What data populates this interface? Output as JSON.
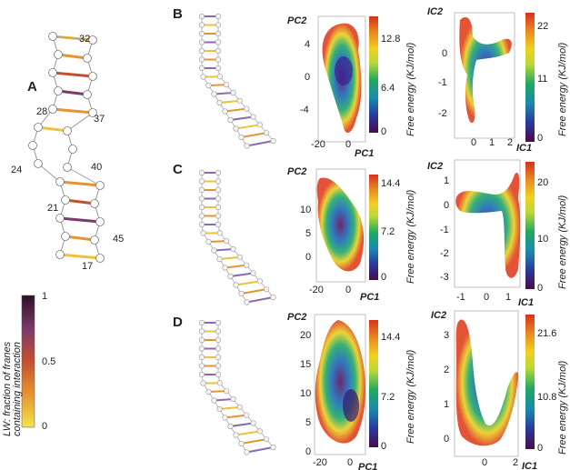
{
  "panels": {
    "A": "A",
    "B": "B",
    "C": "C",
    "D": "D"
  },
  "nums_A": [
    "32",
    "28",
    "37",
    "24",
    "40",
    "21",
    "45",
    "17"
  ],
  "legend": {
    "title_line1": "LW: fraction of franes",
    "title_line2": "containing interaction",
    "ticks": [
      "1",
      "0.5",
      "0"
    ],
    "colors": [
      "#3a0f2e",
      "#6b2d5b",
      "#b0405a",
      "#d4602a",
      "#e59530",
      "#f0c23a",
      "#f5e34a"
    ]
  },
  "rows": [
    {
      "pca": {
        "ylabel": "PC2",
        "xlabel": "PC1",
        "cblabel": "Free energy (KJ/mol)",
        "cbticks": [
          "12.8",
          "6.4",
          "0"
        ],
        "yticks": [
          "4",
          "0",
          "-4"
        ],
        "xticks": [
          "-20",
          "0"
        ]
      },
      "ica": {
        "ylabel": "IC2",
        "xlabel": "IC1",
        "cblabel": "Free energy (KJ/mol)",
        "cbticks": [
          "22",
          "11",
          "0"
        ],
        "yticks": [
          "0",
          "-1",
          "-2"
        ],
        "xticks": [
          "0",
          "1",
          "2"
        ]
      }
    },
    {
      "pca": {
        "ylabel": "PC2",
        "xlabel": "PC1",
        "cblabel": "Free energy (KJ/mol)",
        "cbticks": [
          "14.4",
          "7.2",
          "0"
        ],
        "yticks": [
          "10",
          "5",
          "0"
        ],
        "xticks": [
          "-20",
          "0"
        ]
      },
      "ica": {
        "ylabel": "IC2",
        "xlabel": "IC1",
        "cblabel": "Free energy (KJ/mol)",
        "cbticks": [
          "20",
          "10",
          "0"
        ],
        "yticks": [
          "1",
          "0",
          "-1",
          "-2",
          "-3"
        ],
        "xticks": [
          "-1",
          "0",
          "1"
        ]
      }
    },
    {
      "pca": {
        "ylabel": "PC2",
        "xlabel": "PC1",
        "cblabel": "Free energy (KJ/mol)",
        "cbticks": [
          "14.4",
          "7.2",
          "0"
        ],
        "yticks": [
          "20",
          "15",
          "10",
          "5",
          "0"
        ],
        "xticks": [
          "-20",
          "0"
        ]
      },
      "ica": {
        "ylabel": "IC2",
        "xlabel": "IC1",
        "cblabel": "Free energy (KJ/mol)",
        "cbticks": [
          "21.6",
          "10.8",
          "0"
        ],
        "yticks": [
          "3",
          "2",
          "1",
          "0"
        ],
        "xticks": [
          "0",
          "2"
        ]
      }
    }
  ],
  "colors": {
    "cmap": [
      "#4a0a4a",
      "#2a3a9a",
      "#1a8ab0",
      "#20a860",
      "#b8d838",
      "#f2d020",
      "#e88a20",
      "#d83020"
    ]
  }
}
